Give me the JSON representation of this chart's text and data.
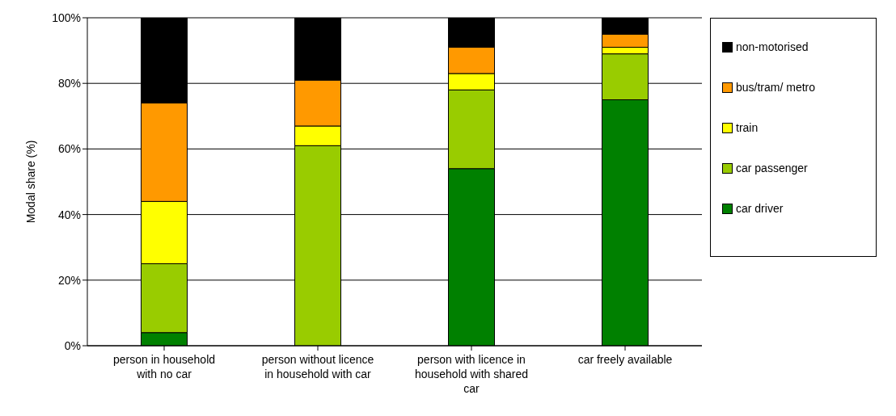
{
  "chart_data": {
    "type": "bar",
    "stacked": true,
    "ylabel": "Modal share (%)",
    "categories": [
      "person in household with no car",
      "person without licence in household with car",
      "person with licence in household with shared car",
      "car freely available"
    ],
    "series": [
      {
        "name": "car driver",
        "color": "#008000",
        "values": [
          4,
          0,
          54,
          75
        ]
      },
      {
        "name": "car passenger",
        "color": "#99cc00",
        "values": [
          21,
          61,
          24,
          14
        ]
      },
      {
        "name": "train",
        "color": "#ffff00",
        "values": [
          19,
          6,
          5,
          2
        ]
      },
      {
        "name": "bus/tram/ metro",
        "color": "#ff9900",
        "values": [
          30,
          14,
          8,
          4
        ]
      },
      {
        "name": "non-motorised",
        "color": "#000000",
        "values": [
          26,
          19,
          9,
          5
        ]
      }
    ],
    "ylim": [
      0,
      100
    ],
    "yticks": [
      {
        "value": 0,
        "label": "0%"
      },
      {
        "value": 20,
        "label": "20%"
      },
      {
        "value": 40,
        "label": "40%"
      },
      {
        "value": 60,
        "label": "60%"
      },
      {
        "value": 80,
        "label": "80%"
      },
      {
        "value": 100,
        "label": "100%"
      }
    ],
    "grid": "y",
    "legend": "right"
  }
}
